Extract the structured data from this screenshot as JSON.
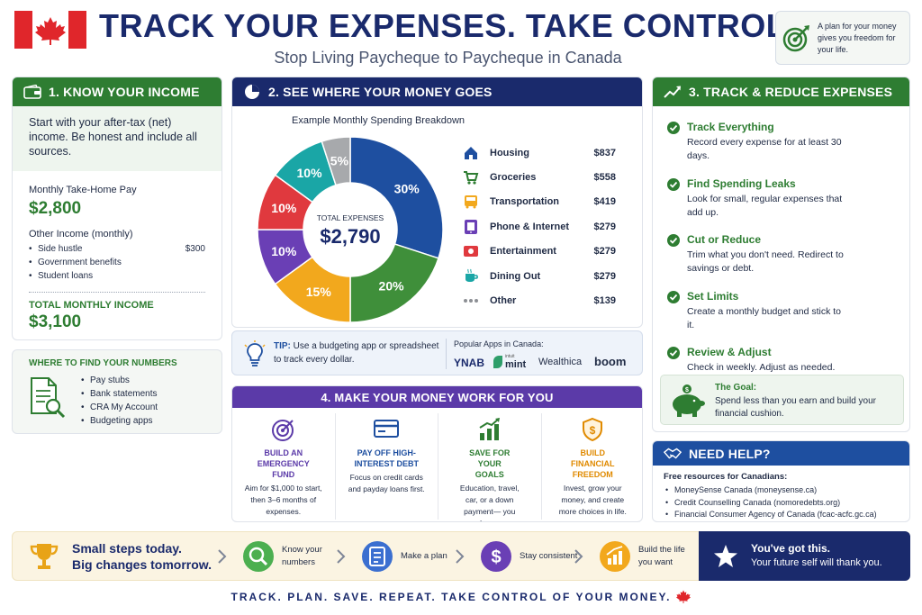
{
  "header": {
    "title": "TRACK YOUR EXPENSES. TAKE CONTROL.",
    "subtitle": "Stop Living Paycheque to Paycheque in Canada",
    "callout": "A plan for your money gives you freedom for your life."
  },
  "income": {
    "heading": "1. KNOW YOUR INCOME",
    "intro": "Start with your after-tax (net) income. Be honest and include all sources.",
    "take_home_label": "Monthly Take-Home Pay",
    "take_home_value": "$2,800",
    "other_label": "Other Income (monthly)",
    "other_items": [
      {
        "label": "Side hustle",
        "value": "$300"
      },
      {
        "label": "Government benefits",
        "value": ""
      },
      {
        "label": "Student loans",
        "value": ""
      }
    ],
    "total_label": "TOTAL MONTHLY INCOME",
    "total_value": "$3,100"
  },
  "find_numbers": {
    "heading": "WHERE TO FIND YOUR NUMBERS",
    "items": [
      "Pay stubs",
      "Bank statements",
      "CRA My Account",
      "Budgeting apps"
    ]
  },
  "spending": {
    "heading": "2. SEE WHERE YOUR MONEY GOES",
    "chart_title": "Example Monthly Spending Breakdown",
    "center_label": "TOTAL EXPENSES",
    "center_value": "$2,790",
    "tip_label": "TIP:",
    "tip_text": "Use a budgeting app or spreadsheet to track every dollar.",
    "apps_label": "Popular Apps in Canada:",
    "apps": [
      "YNAB",
      "mint",
      "Wealthica",
      "boom"
    ],
    "apps_mint_prefix": "intuit"
  },
  "chart_data": {
    "type": "pie",
    "title": "Example Monthly Spending Breakdown",
    "categories": [
      "Housing",
      "Groceries",
      "Transportation",
      "Phone & Internet",
      "Entertainment",
      "Dining Out",
      "Other"
    ],
    "values": [
      837,
      558,
      419,
      279,
      279,
      279,
      139
    ],
    "amounts": [
      "$837",
      "$558",
      "$419",
      "$279",
      "$279",
      "$279",
      "$139"
    ],
    "percent_labels": [
      "30%",
      "20%",
      "15%",
      "10%",
      "10%",
      "10%",
      "5%"
    ],
    "colors": [
      "#1e4fa0",
      "#3f8f3a",
      "#f2a81d",
      "#6a3fb5",
      "#e0393e",
      "#1aa6a6",
      "#a7a9ac"
    ],
    "icons": [
      "house-icon",
      "cart-icon",
      "bus-icon",
      "phone-icon",
      "ticket-icon",
      "cup-icon",
      "dots-icon"
    ],
    "legend": "right"
  },
  "track": {
    "heading": "3. TRACK & REDUCE EXPENSES",
    "items": [
      {
        "title": "Track Everything",
        "text": "Record every expense for at least 30 days."
      },
      {
        "title": "Find Spending Leaks",
        "text": "Look for small, regular expenses that add up."
      },
      {
        "title": "Cut or Reduce",
        "text": "Trim what you don't need. Redirect to savings or debt."
      },
      {
        "title": "Set Limits",
        "text": "Create a monthly budget and stick to it."
      },
      {
        "title": "Review & Adjust",
        "text": "Check in weekly. Adjust as needed."
      }
    ],
    "goal_title": "The Goal:",
    "goal_text": "Spend less than you earn and build your financial cushion."
  },
  "work": {
    "heading": "4. MAKE YOUR MONEY WORK FOR YOU",
    "items": [
      {
        "title": "BUILD AN EMERGENCY FUND",
        "text": "Aim for $1,000 to start, then 3–6 months of expenses.",
        "icon": "target-icon",
        "color": "#5b3aa8"
      },
      {
        "title": "PAY OFF HIGH-INTEREST DEBT",
        "text": "Focus on credit cards and payday loans first.",
        "icon": "credit-card-icon",
        "color": "#1e4fa0"
      },
      {
        "title": "SAVE FOR YOUR GOALS",
        "text": "Education, travel, car, or a down payment— you choose.",
        "icon": "growth-chart-icon",
        "color": "#2e7d32"
      },
      {
        "title": "BUILD FINANCIAL FREEDOM",
        "text": "Invest, grow your money, and create more choices in life.",
        "icon": "shield-dollar-icon",
        "color": "#e08a00"
      }
    ]
  },
  "help": {
    "heading": "NEED HELP?",
    "intro": "Free resources for Canadians:",
    "items": [
      "MoneySense Canada (moneysense.ca)",
      "Credit Counselling Canada (nomoredebts.org)",
      "Financial Consumer Agency of Canada (fcac-acfc.gc.ca)"
    ]
  },
  "footer": {
    "line1": "Small steps today.",
    "line2": "Big changes tomorrow.",
    "steps": [
      {
        "label": "Know your numbers",
        "icon": "magnifier-icon",
        "color": "#4caf50"
      },
      {
        "label": "Make a plan",
        "icon": "checklist-icon",
        "color": "#3b6fd0"
      },
      {
        "label": "Stay consistent",
        "icon": "dollar-icon",
        "color": "#6a3fb5"
      },
      {
        "label": "Build the life you want",
        "icon": "growth-icon",
        "color": "#f2a81d"
      }
    ],
    "final_title": "You've got this.",
    "final_text": "Your future self will thank you.",
    "tagline": "TRACK. PLAN. SAVE. REPEAT. TAKE CONTROL OF YOUR MONEY."
  }
}
